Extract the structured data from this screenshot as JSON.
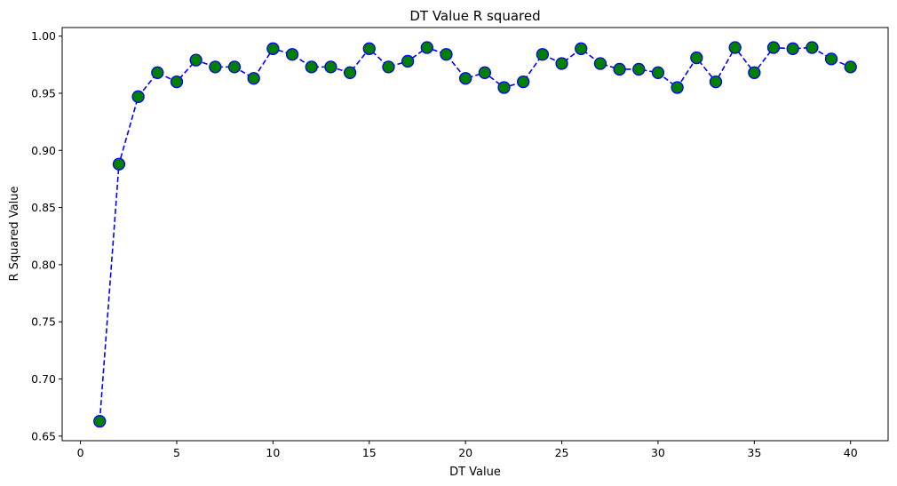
{
  "chart_data": {
    "type": "line",
    "title": "DT Value R squared",
    "xlabel": "DT Value",
    "ylabel": "R Squared Value",
    "xlim": [
      -0.95,
      41.95
    ],
    "ylim": [
      0.646,
      1.0075
    ],
    "xticks": [
      0,
      5,
      10,
      15,
      20,
      25,
      30,
      35,
      40
    ],
    "yticks": [
      0.65,
      0.7,
      0.75,
      0.8,
      0.85,
      0.9,
      0.95,
      1.0
    ],
    "grid": false,
    "line_color": "#0000ff",
    "line_style": "dashed",
    "marker": "circle",
    "marker_face_color": "#008000",
    "marker_edge_color": "#0000ff",
    "series": [
      {
        "x": [
          1,
          2,
          3,
          4,
          5,
          6,
          7,
          8,
          9,
          10,
          11,
          12,
          13,
          14,
          15,
          16,
          17,
          18,
          19,
          20,
          21,
          22,
          23,
          24,
          25,
          26,
          27,
          28,
          29,
          30,
          31,
          32,
          33,
          34,
          35,
          36,
          37,
          38,
          39,
          40
        ],
        "values": [
          0.663,
          0.888,
          0.947,
          0.968,
          0.96,
          0.979,
          0.973,
          0.973,
          0.963,
          0.989,
          0.984,
          0.973,
          0.973,
          0.968,
          0.989,
          0.973,
          0.978,
          0.99,
          0.984,
          0.963,
          0.968,
          0.955,
          0.96,
          0.984,
          0.976,
          0.989,
          0.976,
          0.971,
          0.971,
          0.968,
          0.955,
          0.981,
          0.96,
          0.99,
          0.968,
          0.99,
          0.989,
          0.99,
          0.98,
          0.973
        ]
      }
    ]
  }
}
